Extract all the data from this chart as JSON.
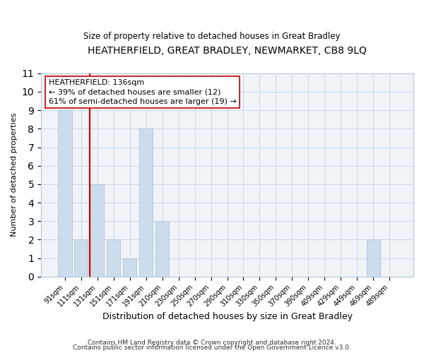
{
  "title": "HEATHERFIELD, GREAT BRADLEY, NEWMARKET, CB8 9LQ",
  "subtitle": "Size of property relative to detached houses in Great Bradley",
  "xlabel": "Distribution of detached houses by size in Great Bradley",
  "ylabel": "Number of detached properties",
  "bar_labels": [
    "91sqm",
    "111sqm",
    "131sqm",
    "151sqm",
    "171sqm",
    "191sqm",
    "210sqm",
    "230sqm",
    "250sqm",
    "270sqm",
    "290sqm",
    "310sqm",
    "330sqm",
    "350sqm",
    "370sqm",
    "390sqm",
    "409sqm",
    "429sqm",
    "449sqm",
    "469sqm",
    "489sqm"
  ],
  "bar_values": [
    9,
    2,
    5,
    2,
    1,
    8,
    3,
    0,
    0,
    0,
    0,
    0,
    0,
    0,
    0,
    0,
    0,
    0,
    0,
    2,
    0
  ],
  "bar_color": "#ccdcec",
  "bar_edge_color": "#b0c4d8",
  "property_label": "HEATHERFIELD: 136sqm",
  "pct_smaller": 39,
  "num_smaller": 12,
  "pct_larger": 61,
  "num_larger": 19,
  "vline_x_index": 2,
  "vline_color": "#cc0000",
  "annotation_box_color": "#ffffff",
  "annotation_box_edge": "#cc0000",
  "ylim": [
    0,
    11
  ],
  "yticks": [
    0,
    1,
    2,
    3,
    4,
    5,
    6,
    7,
    8,
    9,
    10,
    11
  ],
  "footer1": "Contains HM Land Registry data © Crown copyright and database right 2024.",
  "footer2": "Contains public sector information licensed under the Open Government Licence v3.0.",
  "bg_color": "#f0f4f8"
}
